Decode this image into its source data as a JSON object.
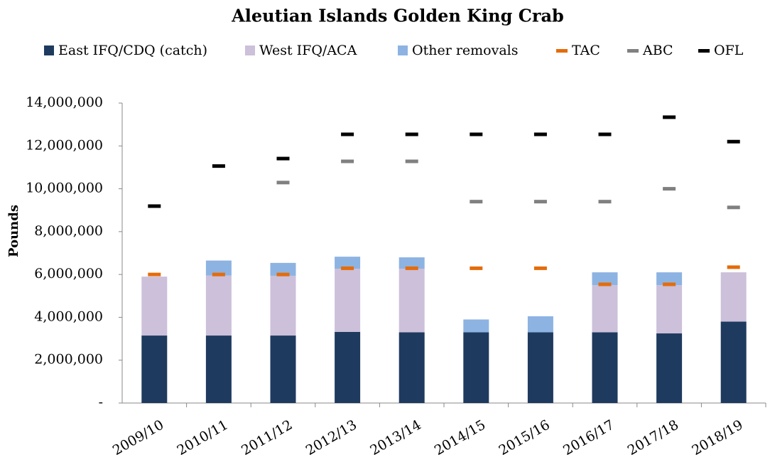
{
  "chart_data": {
    "type": "stacked_bar_markers",
    "title": "Aleutian Islands Golden King Crab",
    "y_label": "Pounds",
    "categories": [
      "2009/10",
      "2010/11",
      "2011/12",
      "2012/13",
      "2013/14",
      "2014/15",
      "2015/16",
      "2016/17",
      "2017/18",
      "2018/19"
    ],
    "series": [
      {
        "name": "East IFQ/CDQ (catch)",
        "color": "#1f3a5f",
        "kind": "bar",
        "values": [
          3150000,
          3150000,
          3150000,
          3320000,
          3300000,
          3300000,
          3300000,
          3300000,
          3250000,
          3800000
        ]
      },
      {
        "name": "West IFQ/ACA",
        "color": "#ccc0da",
        "kind": "bar",
        "values": [
          2750000,
          2800000,
          2790000,
          2950000,
          2970000,
          null,
          null,
          2200000,
          2250000,
          2300000
        ]
      },
      {
        "name": "Other removals",
        "color": "#8db3e2",
        "kind": "bar",
        "values": [
          null,
          700000,
          600000,
          560000,
          530000,
          600000,
          750000,
          600000,
          600000,
          null
        ]
      },
      {
        "name": "TAC",
        "color": "#e46c0a",
        "kind": "marker",
        "values": [
          6000000,
          6000000,
          6000000,
          6290000,
          6290000,
          6290000,
          6290000,
          5540000,
          5540000,
          6340000
        ]
      },
      {
        "name": "ABC",
        "color": "#808080",
        "kind": "marker",
        "values": [
          null,
          null,
          10290000,
          11280000,
          11280000,
          9400000,
          9400000,
          9400000,
          10000000,
          9130000
        ]
      },
      {
        "name": "OFL",
        "color": "#000000",
        "kind": "marker",
        "values": [
          9190000,
          11060000,
          11410000,
          12540000,
          12540000,
          12540000,
          12540000,
          12540000,
          13340000,
          12200000
        ]
      }
    ],
    "ylim": [
      0,
      14000000
    ],
    "yticks": [
      {
        "value": 0,
        "label": "-"
      },
      {
        "value": 2000000,
        "label": "2,000,000"
      },
      {
        "value": 4000000,
        "label": "4,000,000"
      },
      {
        "value": 6000000,
        "label": "6,000,000"
      },
      {
        "value": 8000000,
        "label": "8,000,000"
      },
      {
        "value": 10000000,
        "label": "10,000,000"
      },
      {
        "value": 12000000,
        "label": "12,000,000"
      },
      {
        "value": 14000000,
        "label": "14,000,000"
      }
    ],
    "grid": false
  }
}
